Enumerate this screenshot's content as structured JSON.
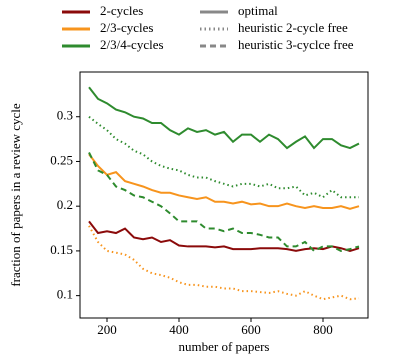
{
  "chart_data": {
    "type": "line",
    "xlabel": "number of papers",
    "ylabel": "fraction of papers in a review cycle",
    "x": [
      150,
      175,
      200,
      225,
      250,
      275,
      300,
      325,
      350,
      375,
      400,
      425,
      450,
      475,
      500,
      525,
      550,
      575,
      600,
      625,
      650,
      675,
      700,
      725,
      750,
      775,
      800,
      825,
      850,
      875,
      900
    ],
    "xlim": [
      125,
      925
    ],
    "xticks": [
      200,
      400,
      600,
      800
    ],
    "ylim": [
      0.075,
      0.35
    ],
    "yticks": [
      0.1,
      0.15,
      0.2,
      0.25,
      0.3
    ],
    "legend": {
      "colors": [
        {
          "name": "2-cycles",
          "color": "#8b0a0a"
        },
        {
          "name": "2/3-cycles",
          "color": "#f7941d"
        },
        {
          "name": "2/3/4-cycles",
          "color": "#2e8b2e"
        }
      ],
      "styles": [
        {
          "name": "optimal",
          "dash": "solid"
        },
        {
          "name": "heuristic 2-cycle free",
          "dash": "dotted"
        },
        {
          "name": "heuristic 3-cyclce free",
          "dash": "dashed"
        }
      ]
    },
    "series": [
      {
        "color": "#8b0a0a",
        "dash": "solid",
        "values": [
          0.183,
          0.17,
          0.172,
          0.17,
          0.175,
          0.165,
          0.163,
          0.165,
          0.16,
          0.162,
          0.156,
          0.155,
          0.155,
          0.155,
          0.154,
          0.155,
          0.152,
          0.152,
          0.152,
          0.153,
          0.153,
          0.153,
          0.152,
          0.15,
          0.152,
          0.153,
          0.152,
          0.155,
          0.153,
          0.15,
          0.153
        ]
      },
      {
        "color": "#f7941d",
        "dash": "solid",
        "values": [
          0.258,
          0.245,
          0.235,
          0.238,
          0.228,
          0.225,
          0.222,
          0.218,
          0.215,
          0.215,
          0.212,
          0.21,
          0.208,
          0.21,
          0.205,
          0.205,
          0.203,
          0.205,
          0.202,
          0.203,
          0.2,
          0.2,
          0.203,
          0.2,
          0.198,
          0.2,
          0.198,
          0.198,
          0.2,
          0.197,
          0.2
        ]
      },
      {
        "color": "#f7941d",
        "dash": "dotted",
        "values": [
          0.178,
          0.16,
          0.15,
          0.148,
          0.146,
          0.14,
          0.13,
          0.125,
          0.123,
          0.12,
          0.115,
          0.112,
          0.112,
          0.11,
          0.11,
          0.108,
          0.108,
          0.105,
          0.105,
          0.104,
          0.103,
          0.105,
          0.102,
          0.1,
          0.105,
          0.1,
          0.096,
          0.098,
          0.1,
          0.096,
          0.097
        ]
      },
      {
        "color": "#2e8b2e",
        "dash": "solid",
        "values": [
          0.333,
          0.32,
          0.315,
          0.308,
          0.305,
          0.3,
          0.298,
          0.293,
          0.293,
          0.285,
          0.28,
          0.287,
          0.283,
          0.285,
          0.28,
          0.283,
          0.272,
          0.28,
          0.28,
          0.272,
          0.28,
          0.275,
          0.265,
          0.272,
          0.278,
          0.265,
          0.275,
          0.275,
          0.268,
          0.265,
          0.27
        ]
      },
      {
        "color": "#2e8b2e",
        "dash": "dotted",
        "values": [
          0.3,
          0.292,
          0.285,
          0.275,
          0.27,
          0.262,
          0.258,
          0.25,
          0.245,
          0.242,
          0.24,
          0.235,
          0.232,
          0.232,
          0.228,
          0.225,
          0.222,
          0.225,
          0.225,
          0.222,
          0.225,
          0.22,
          0.22,
          0.222,
          0.212,
          0.215,
          0.21,
          0.218,
          0.21,
          0.21,
          0.21
        ]
      },
      {
        "color": "#2e8b2e",
        "dash": "dashed",
        "values": [
          0.26,
          0.24,
          0.235,
          0.222,
          0.218,
          0.212,
          0.21,
          0.205,
          0.2,
          0.192,
          0.183,
          0.183,
          0.183,
          0.175,
          0.175,
          0.172,
          0.175,
          0.17,
          0.17,
          0.168,
          0.165,
          0.165,
          0.155,
          0.155,
          0.16,
          0.15,
          0.155,
          0.155,
          0.15,
          0.152,
          0.155
        ]
      }
    ]
  }
}
